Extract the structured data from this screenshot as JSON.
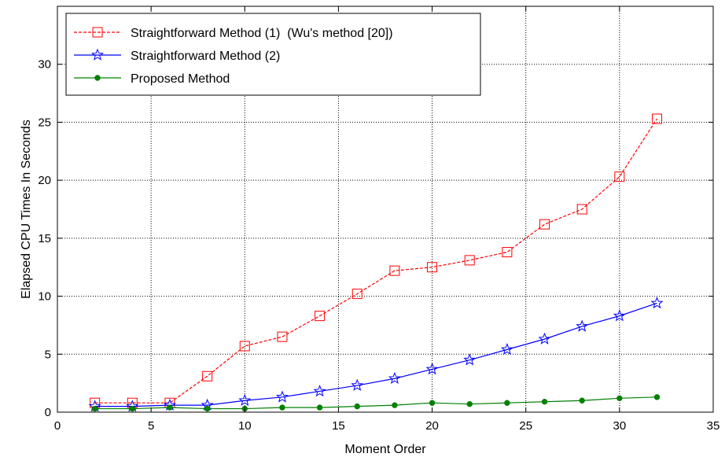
{
  "chart_data": {
    "type": "line",
    "title": "",
    "xlabel": "Moment Order",
    "ylabel": "Elapsed CPU Times In Seconds",
    "xlim": [
      0,
      35
    ],
    "ylim": [
      0,
      35
    ],
    "xticks": [
      0,
      5,
      10,
      15,
      20,
      25,
      30,
      35
    ],
    "yticks": [
      0,
      5,
      10,
      15,
      20,
      25,
      30
    ],
    "grid": true,
    "legend_position": "top-left",
    "x": [
      2,
      4,
      6,
      8,
      10,
      12,
      14,
      16,
      18,
      20,
      22,
      24,
      26,
      28,
      30,
      32
    ],
    "series": [
      {
        "name": "Straightforward Method (1)  (Wu's method [20])",
        "color": "#ff0000",
        "marker": "square",
        "line_style": "dashed",
        "values": [
          0.8,
          0.8,
          0.8,
          3.1,
          5.7,
          6.5,
          8.3,
          10.2,
          12.2,
          12.5,
          13.1,
          13.8,
          16.2,
          17.5,
          20.3,
          25.3
        ]
      },
      {
        "name": "Straightforward Method (2)",
        "color": "#0000ff",
        "marker": "star",
        "line_style": "solid",
        "values": [
          0.5,
          0.5,
          0.6,
          0.6,
          1.0,
          1.3,
          1.8,
          2.3,
          2.9,
          3.7,
          4.5,
          5.4,
          6.3,
          7.4,
          8.3,
          9.4
        ]
      },
      {
        "name": "Proposed Method",
        "color": "#008000",
        "marker": "dot",
        "line_style": "solid",
        "values": [
          0.3,
          0.3,
          0.4,
          0.3,
          0.3,
          0.4,
          0.4,
          0.5,
          0.6,
          0.8,
          0.7,
          0.8,
          0.9,
          1.0,
          1.2,
          1.3
        ]
      }
    ]
  }
}
